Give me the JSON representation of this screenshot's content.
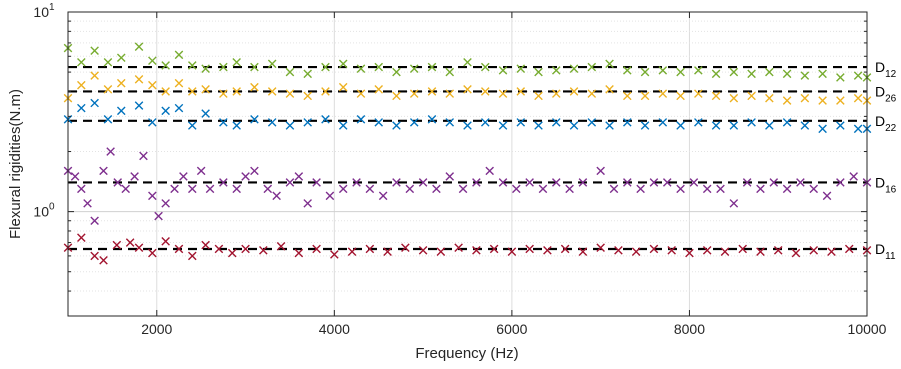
{
  "chart_data": {
    "type": "scatter",
    "xlabel": "Frequency (Hz)",
    "ylabel": "Flexural rigidities(N.m)",
    "xlim": [
      1000,
      10000
    ],
    "ylim": [
      0.3,
      10
    ],
    "yscale": "log",
    "grid": true,
    "x_ticks": [
      2000,
      4000,
      6000,
      8000,
      10000
    ],
    "x_tick_labels": [
      "2000",
      "4000",
      "6000",
      "8000",
      "10000"
    ],
    "y_ticks": [
      1,
      10
    ],
    "y_tick_labels": [
      {
        "base": "10",
        "exp": "0"
      },
      {
        "base": "10",
        "exp": "1"
      }
    ],
    "series": [
      {
        "label_base": "D",
        "label_sub": "12",
        "color": "#77AC30",
        "marker": "x",
        "reference": 5.3,
        "values": [
          [
            1000,
            6.6
          ],
          [
            1150,
            5.6
          ],
          [
            1300,
            6.4
          ],
          [
            1450,
            5.6
          ],
          [
            1600,
            5.9
          ],
          [
            1800,
            6.7
          ],
          [
            1950,
            5.7
          ],
          [
            2100,
            5.4
          ],
          [
            2250,
            6.1
          ],
          [
            2400,
            5.4
          ],
          [
            2550,
            5.2
          ],
          [
            2750,
            5.3
          ],
          [
            2900,
            5.6
          ],
          [
            3100,
            5.3
          ],
          [
            3300,
            5.5
          ],
          [
            3500,
            5.0
          ],
          [
            3700,
            4.9
          ],
          [
            3900,
            5.3
          ],
          [
            4100,
            5.5
          ],
          [
            4300,
            5.2
          ],
          [
            4500,
            5.3
          ],
          [
            4700,
            5.0
          ],
          [
            4900,
            5.2
          ],
          [
            5100,
            5.3
          ],
          [
            5300,
            5.0
          ],
          [
            5500,
            5.6
          ],
          [
            5700,
            5.3
          ],
          [
            5900,
            5.1
          ],
          [
            6100,
            5.2
          ],
          [
            6300,
            5.0
          ],
          [
            6500,
            5.1
          ],
          [
            6700,
            5.2
          ],
          [
            6900,
            5.3
          ],
          [
            7100,
            5.5
          ],
          [
            7300,
            5.1
          ],
          [
            7500,
            5.0
          ],
          [
            7700,
            5.1
          ],
          [
            7900,
            5.0
          ],
          [
            8100,
            5.1
          ],
          [
            8300,
            4.9
          ],
          [
            8500,
            5.0
          ],
          [
            8700,
            4.9
          ],
          [
            8900,
            5.0
          ],
          [
            9100,
            4.9
          ],
          [
            9300,
            4.8
          ],
          [
            9500,
            4.9
          ],
          [
            9700,
            4.7
          ],
          [
            9900,
            4.8
          ],
          [
            10000,
            4.7
          ]
        ]
      },
      {
        "label_base": "D",
        "label_sub": "26",
        "color": "#EDB120",
        "marker": "x",
        "reference": 4.0,
        "values": [
          [
            1000,
            3.7
          ],
          [
            1150,
            4.3
          ],
          [
            1300,
            4.8
          ],
          [
            1450,
            4.1
          ],
          [
            1600,
            4.4
          ],
          [
            1800,
            4.6
          ],
          [
            1950,
            4.3
          ],
          [
            2100,
            4.0
          ],
          [
            2250,
            4.4
          ],
          [
            2400,
            4.0
          ],
          [
            2550,
            4.1
          ],
          [
            2750,
            3.9
          ],
          [
            2900,
            4.0
          ],
          [
            3100,
            4.2
          ],
          [
            3300,
            4.0
          ],
          [
            3500,
            3.9
          ],
          [
            3700,
            3.8
          ],
          [
            3900,
            4.0
          ],
          [
            4100,
            4.2
          ],
          [
            4300,
            3.9
          ],
          [
            4500,
            4.1
          ],
          [
            4700,
            3.8
          ],
          [
            4900,
            3.9
          ],
          [
            5100,
            4.0
          ],
          [
            5300,
            3.9
          ],
          [
            5500,
            4.1
          ],
          [
            5700,
            4.0
          ],
          [
            5900,
            3.9
          ],
          [
            6100,
            4.0
          ],
          [
            6300,
            3.8
          ],
          [
            6500,
            3.9
          ],
          [
            6700,
            4.0
          ],
          [
            6900,
            3.9
          ],
          [
            7100,
            4.1
          ],
          [
            7300,
            3.8
          ],
          [
            7500,
            3.8
          ],
          [
            7700,
            3.9
          ],
          [
            7900,
            3.8
          ],
          [
            8100,
            3.9
          ],
          [
            8300,
            3.8
          ],
          [
            8500,
            3.7
          ],
          [
            8700,
            3.8
          ],
          [
            8900,
            3.7
          ],
          [
            9100,
            3.6
          ],
          [
            9300,
            3.7
          ],
          [
            9500,
            3.6
          ],
          [
            9700,
            3.6
          ],
          [
            9900,
            3.7
          ],
          [
            10000,
            3.6
          ]
        ]
      },
      {
        "label_base": "D",
        "label_sub": "22",
        "color": "#0072BD",
        "marker": "x",
        "reference": 2.85,
        "values": [
          [
            1000,
            2.9
          ],
          [
            1150,
            3.3
          ],
          [
            1300,
            3.5
          ],
          [
            1450,
            2.9
          ],
          [
            1600,
            3.2
          ],
          [
            1800,
            3.4
          ],
          [
            1950,
            2.8
          ],
          [
            2100,
            3.2
          ],
          [
            2250,
            3.3
          ],
          [
            2400,
            2.7
          ],
          [
            2550,
            3.1
          ],
          [
            2750,
            2.8
          ],
          [
            2900,
            2.7
          ],
          [
            3100,
            2.9
          ],
          [
            3300,
            2.8
          ],
          [
            3500,
            2.7
          ],
          [
            3700,
            2.8
          ],
          [
            3900,
            2.9
          ],
          [
            4100,
            2.7
          ],
          [
            4300,
            2.9
          ],
          [
            4500,
            2.8
          ],
          [
            4700,
            2.7
          ],
          [
            4900,
            2.8
          ],
          [
            5100,
            2.9
          ],
          [
            5300,
            2.8
          ],
          [
            5500,
            2.7
          ],
          [
            5700,
            2.8
          ],
          [
            5900,
            2.7
          ],
          [
            6100,
            2.8
          ],
          [
            6300,
            2.7
          ],
          [
            6500,
            2.8
          ],
          [
            6700,
            2.7
          ],
          [
            6900,
            2.8
          ],
          [
            7100,
            2.7
          ],
          [
            7300,
            2.8
          ],
          [
            7500,
            2.7
          ],
          [
            7700,
            2.8
          ],
          [
            7900,
            2.7
          ],
          [
            8100,
            2.8
          ],
          [
            8300,
            2.7
          ],
          [
            8500,
            2.7
          ],
          [
            8700,
            2.8
          ],
          [
            8900,
            2.7
          ],
          [
            9100,
            2.8
          ],
          [
            9300,
            2.7
          ],
          [
            9500,
            2.6
          ],
          [
            9700,
            2.7
          ],
          [
            9900,
            2.6
          ],
          [
            10000,
            2.6
          ]
        ]
      },
      {
        "label_base": "D",
        "label_sub": "16",
        "color": "#7E2F8E",
        "marker": "x",
        "reference": 1.4,
        "values": [
          [
            1000,
            1.6
          ],
          [
            1080,
            1.5
          ],
          [
            1150,
            1.3
          ],
          [
            1220,
            1.1
          ],
          [
            1300,
            0.9
          ],
          [
            1400,
            1.6
          ],
          [
            1480,
            2.0
          ],
          [
            1560,
            1.4
          ],
          [
            1650,
            1.3
          ],
          [
            1750,
            1.5
          ],
          [
            1850,
            1.9
          ],
          [
            1950,
            1.2
          ],
          [
            2020,
            0.95
          ],
          [
            2100,
            1.1
          ],
          [
            2200,
            1.3
          ],
          [
            2300,
            1.5
          ],
          [
            2400,
            1.3
          ],
          [
            2500,
            1.6
          ],
          [
            2600,
            1.3
          ],
          [
            2750,
            1.4
          ],
          [
            2900,
            1.3
          ],
          [
            3000,
            1.5
          ],
          [
            3100,
            1.6
          ],
          [
            3250,
            1.3
          ],
          [
            3350,
            1.2
          ],
          [
            3500,
            1.4
          ],
          [
            3600,
            1.5
          ],
          [
            3700,
            1.1
          ],
          [
            3800,
            1.4
          ],
          [
            3950,
            1.2
          ],
          [
            4100,
            1.3
          ],
          [
            4250,
            1.4
          ],
          [
            4400,
            1.3
          ],
          [
            4550,
            1.2
          ],
          [
            4700,
            1.4
          ],
          [
            4850,
            1.3
          ],
          [
            5000,
            1.4
          ],
          [
            5150,
            1.3
          ],
          [
            5300,
            1.5
          ],
          [
            5450,
            1.3
          ],
          [
            5600,
            1.4
          ],
          [
            5750,
            1.6
          ],
          [
            5900,
            1.4
          ],
          [
            6050,
            1.3
          ],
          [
            6200,
            1.4
          ],
          [
            6350,
            1.3
          ],
          [
            6500,
            1.4
          ],
          [
            6650,
            1.3
          ],
          [
            6800,
            1.4
          ],
          [
            7000,
            1.6
          ],
          [
            7150,
            1.3
          ],
          [
            7300,
            1.4
          ],
          [
            7450,
            1.3
          ],
          [
            7600,
            1.4
          ],
          [
            7750,
            1.4
          ],
          [
            7900,
            1.3
          ],
          [
            8050,
            1.4
          ],
          [
            8200,
            1.3
          ],
          [
            8350,
            1.3
          ],
          [
            8500,
            1.1
          ],
          [
            8650,
            1.4
          ],
          [
            8800,
            1.3
          ],
          [
            8950,
            1.4
          ],
          [
            9100,
            1.3
          ],
          [
            9250,
            1.4
          ],
          [
            9400,
            1.3
          ],
          [
            9550,
            1.2
          ],
          [
            9700,
            1.4
          ],
          [
            9850,
            1.5
          ],
          [
            10000,
            1.4
          ]
        ]
      },
      {
        "label_base": "D",
        "label_sub": "11",
        "color": "#A2142F",
        "marker": "x",
        "reference": 0.65,
        "values": [
          [
            1000,
            0.66
          ],
          [
            1150,
            0.74
          ],
          [
            1300,
            0.6
          ],
          [
            1400,
            0.57
          ],
          [
            1550,
            0.68
          ],
          [
            1700,
            0.7
          ],
          [
            1800,
            0.66
          ],
          [
            1950,
            0.62
          ],
          [
            2100,
            0.71
          ],
          [
            2250,
            0.65
          ],
          [
            2400,
            0.6
          ],
          [
            2550,
            0.68
          ],
          [
            2700,
            0.65
          ],
          [
            2850,
            0.62
          ],
          [
            3000,
            0.65
          ],
          [
            3200,
            0.64
          ],
          [
            3400,
            0.67
          ],
          [
            3600,
            0.62
          ],
          [
            3800,
            0.65
          ],
          [
            4000,
            0.61
          ],
          [
            4200,
            0.63
          ],
          [
            4400,
            0.65
          ],
          [
            4600,
            0.63
          ],
          [
            4800,
            0.66
          ],
          [
            5000,
            0.64
          ],
          [
            5200,
            0.63
          ],
          [
            5400,
            0.66
          ],
          [
            5600,
            0.64
          ],
          [
            5800,
            0.65
          ],
          [
            6000,
            0.63
          ],
          [
            6200,
            0.65
          ],
          [
            6400,
            0.64
          ],
          [
            6600,
            0.65
          ],
          [
            6800,
            0.63
          ],
          [
            7000,
            0.66
          ],
          [
            7200,
            0.64
          ],
          [
            7400,
            0.63
          ],
          [
            7600,
            0.65
          ],
          [
            7800,
            0.64
          ],
          [
            8000,
            0.62
          ],
          [
            8200,
            0.64
          ],
          [
            8400,
            0.63
          ],
          [
            8600,
            0.65
          ],
          [
            8800,
            0.63
          ],
          [
            9000,
            0.64
          ],
          [
            9200,
            0.62
          ],
          [
            9400,
            0.64
          ],
          [
            9600,
            0.63
          ],
          [
            9800,
            0.65
          ],
          [
            10000,
            0.64
          ]
        ]
      }
    ]
  }
}
